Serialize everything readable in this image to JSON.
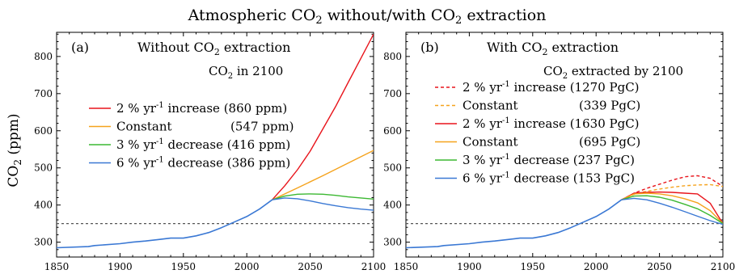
{
  "figure": {
    "title_main": "Atmospheric CO",
    "title_sub": "2",
    "title_rest": " without/with CO",
    "title_sub2": "2",
    "title_end": " extraction"
  },
  "ylabel": {
    "main": "CO",
    "sub": "2",
    "rest": " (ppm)"
  },
  "chart_data": [
    {
      "type": "line",
      "panel_label": "(a)",
      "title": {
        "main": "Without CO",
        "sub": "2",
        "rest": " extraction"
      },
      "legend_header": {
        "main": "CO",
        "sub": "2",
        "rest": " in 2100"
      },
      "xlim": [
        1850,
        2100
      ],
      "ylim": [
        260,
        865
      ],
      "xticks": [
        1850,
        1900,
        1950,
        2000,
        2050,
        2100
      ],
      "yticks": [
        300,
        400,
        500,
        600,
        700,
        800
      ],
      "reference_line": 350,
      "series": [
        {
          "name": "2 % yr-1 increase (860 ppm)",
          "label_a": "2 % yr",
          "label_sup": "-1",
          "label_b": " increase",
          "value_label": "(860 ppm)",
          "color": "#e8141b",
          "dash": "solid",
          "x": [
            2020,
            2030,
            2040,
            2050,
            2060,
            2070,
            2080,
            2090,
            2100
          ],
          "y": [
            414,
            452,
            495,
            545,
            605,
            665,
            730,
            795,
            860
          ]
        },
        {
          "name": "Constant (547 ppm)",
          "label_a": "Constant",
          "label_sup": "",
          "label_b": "",
          "value_label": "(547 ppm)",
          "color": "#f5a31d",
          "dash": "solid",
          "x": [
            2020,
            2040,
            2060,
            2080,
            2100
          ],
          "y": [
            414,
            446,
            479,
            513,
            547
          ]
        },
        {
          "name": "3 % yr-1 decrease (416 ppm)",
          "label_a": "3 % yr",
          "label_sup": "-1",
          "label_b": " decrease",
          "value_label": "(416 ppm)",
          "color": "#3cb832",
          "dash": "solid",
          "x": [
            2020,
            2030,
            2040,
            2050,
            2060,
            2070,
            2080,
            2090,
            2100
          ],
          "y": [
            414,
            424,
            429,
            430,
            429,
            426,
            422,
            419,
            416
          ]
        },
        {
          "name": "6 % yr-1 decrease (386 ppm)",
          "label_a": "6 % yr",
          "label_sup": "-1",
          "label_b": " decrease",
          "value_label": "(386 ppm)",
          "color": "#3a78d4",
          "dash": "solid",
          "x": [
            2020,
            2030,
            2040,
            2050,
            2060,
            2070,
            2080,
            2090,
            2100
          ],
          "y": [
            414,
            419,
            417,
            411,
            404,
            398,
            393,
            389,
            386
          ]
        }
      ],
      "historical": {
        "color": "#3a78d4",
        "x": [
          1850,
          1875,
          1880,
          1900,
          1910,
          1920,
          1930,
          1940,
          1950,
          1960,
          1970,
          1980,
          1990,
          2000,
          2010,
          2020
        ],
        "y": [
          285,
          288,
          291,
          296,
          300,
          303,
          307,
          311,
          311,
          317,
          326,
          339,
          354,
          369,
          389,
          414
        ]
      }
    },
    {
      "type": "line",
      "panel_label": "(b)",
      "title": {
        "main": "With CO",
        "sub": "2",
        "rest": " extraction"
      },
      "legend_header": {
        "main": "CO",
        "sub": "2",
        "rest": " extracted by 2100"
      },
      "xlim": [
        1850,
        2100
      ],
      "ylim": [
        260,
        865
      ],
      "xticks": [
        1850,
        1900,
        1950,
        2000,
        2050,
        2100
      ],
      "yticks": [
        300,
        400,
        500,
        600,
        700,
        800
      ],
      "reference_line": 350,
      "series": [
        {
          "name": "2 % yr-1 increase (1270 PgC)",
          "label_a": "2 % yr",
          "label_sup": "-1",
          "label_b": " increase",
          "value_label": "(1270 PgC)",
          "color": "#e8141b",
          "dash": "dashed",
          "x": [
            2020,
            2030,
            2040,
            2050,
            2060,
            2070,
            2080,
            2090,
            2100
          ],
          "y": [
            414,
            432,
            445,
            456,
            467,
            476,
            479,
            472,
            450
          ]
        },
        {
          "name": "Constant (339 PgC)",
          "label_a": "Constant",
          "label_sup": "",
          "label_b": "",
          "value_label": "(339 PgC)",
          "color": "#f5a31d",
          "dash": "dashed",
          "x": [
            2020,
            2030,
            2040,
            2050,
            2060,
            2070,
            2080,
            2090,
            2100
          ],
          "y": [
            414,
            429,
            437,
            443,
            448,
            452,
            454,
            455,
            450
          ]
        },
        {
          "name": "2 % yr-1 increase (1630 PgC)",
          "label_a": "2 % yr",
          "label_sup": "-1",
          "label_b": " increase",
          "value_label": "(1630 PgC)",
          "color": "#e8141b",
          "dash": "solid",
          "x": [
            2020,
            2030,
            2040,
            2050,
            2060,
            2070,
            2080,
            2090,
            2100
          ],
          "y": [
            414,
            432,
            434,
            435,
            434,
            432,
            430,
            405,
            350
          ]
        },
        {
          "name": "Constant (695 PgC)",
          "label_a": "Constant",
          "label_sup": "",
          "label_b": "",
          "value_label": "(695 PgC)",
          "color": "#f5a31d",
          "dash": "solid",
          "x": [
            2020,
            2030,
            2040,
            2050,
            2060,
            2070,
            2080,
            2090,
            2100
          ],
          "y": [
            414,
            430,
            432,
            430,
            425,
            417,
            406,
            385,
            350
          ]
        },
        {
          "name": "3 % yr-1 decrease (237 PgC)",
          "label_a": "3 % yr",
          "label_sup": "-1",
          "label_b": " decrease",
          "value_label": "(237 PgC)",
          "color": "#3cb832",
          "dash": "solid",
          "x": [
            2020,
            2030,
            2040,
            2050,
            2060,
            2070,
            2080,
            2090,
            2100
          ],
          "y": [
            414,
            424,
            425,
            421,
            413,
            402,
            390,
            372,
            350
          ]
        },
        {
          "name": "6 % yr-1 decrease (153 PgC)",
          "label_a": "6 % yr",
          "label_sup": "-1",
          "label_b": " decrease",
          "value_label": "(153 PgC)",
          "color": "#3a78d4",
          "dash": "solid",
          "x": [
            2020,
            2030,
            2040,
            2050,
            2060,
            2070,
            2080,
            2090,
            2100
          ],
          "y": [
            414,
            418,
            414,
            405,
            394,
            382,
            370,
            358,
            348
          ]
        }
      ],
      "historical": {
        "color": "#3a78d4",
        "x": [
          1850,
          1875,
          1880,
          1900,
          1910,
          1920,
          1930,
          1940,
          1950,
          1960,
          1970,
          1980,
          1990,
          2000,
          2010,
          2020
        ],
        "y": [
          285,
          288,
          291,
          296,
          300,
          303,
          307,
          311,
          311,
          317,
          326,
          339,
          354,
          369,
          389,
          414
        ]
      }
    }
  ]
}
